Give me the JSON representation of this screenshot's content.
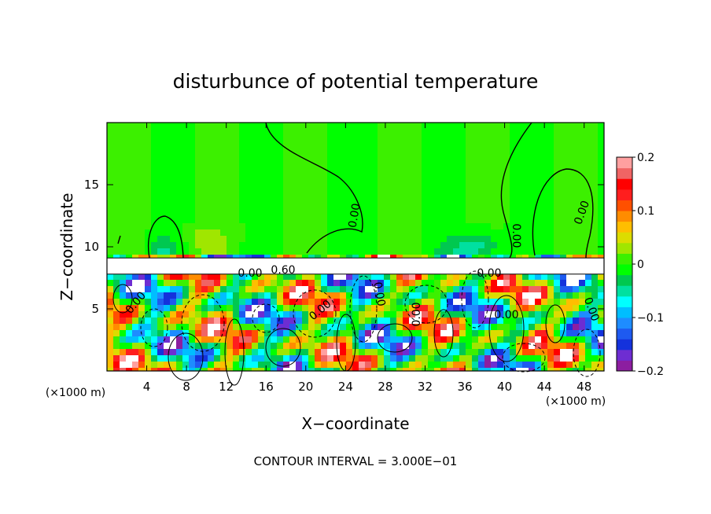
{
  "chart_data": {
    "type": "heatmap",
    "title": "disturbunce of potential temperature",
    "xlabel": "X−coordinate",
    "ylabel": "Z−coordinate",
    "x_unit": "(×1000 m)",
    "y_unit": "(×1000 m)",
    "xlim": [
      0,
      50
    ],
    "ylim": [
      0,
      20
    ],
    "x_ticks": [
      4,
      8,
      12,
      16,
      20,
      24,
      28,
      32,
      36,
      40,
      44,
      48
    ],
    "y_ticks": [
      5,
      10,
      15
    ],
    "colorbar": {
      "vmin": -0.2,
      "vmax": 0.2,
      "tick_values": [
        0.2,
        0.1,
        0,
        -0.1,
        -0.2
      ],
      "tick_labels": [
        "0.2",
        "0.1",
        "0",
        "−0.1",
        "−0.2"
      ],
      "colors": [
        "#8c1ea0",
        "#6e2dd2",
        "#1432dc",
        "#1e5af0",
        "#1e8cff",
        "#00beff",
        "#00ffff",
        "#00e0a0",
        "#00c850",
        "#00ff00",
        "#3cf000",
        "#a0e600",
        "#dcdc00",
        "#ffbe00",
        "#ff8c00",
        "#ff5000",
        "#ff1e1e",
        "#ff0000",
        "#f06464",
        "#ffa0a0"
      ]
    },
    "contour_labels": [
      "0.00",
      "0.00",
      "0.00",
      "0.00",
      "0.00",
      "0.00",
      "0.00",
      "0.00",
      "0.00",
      "0.00",
      "0.00",
      "0.60"
    ],
    "footer": "CONTOUR INTERVAL = 3.000E−01"
  }
}
